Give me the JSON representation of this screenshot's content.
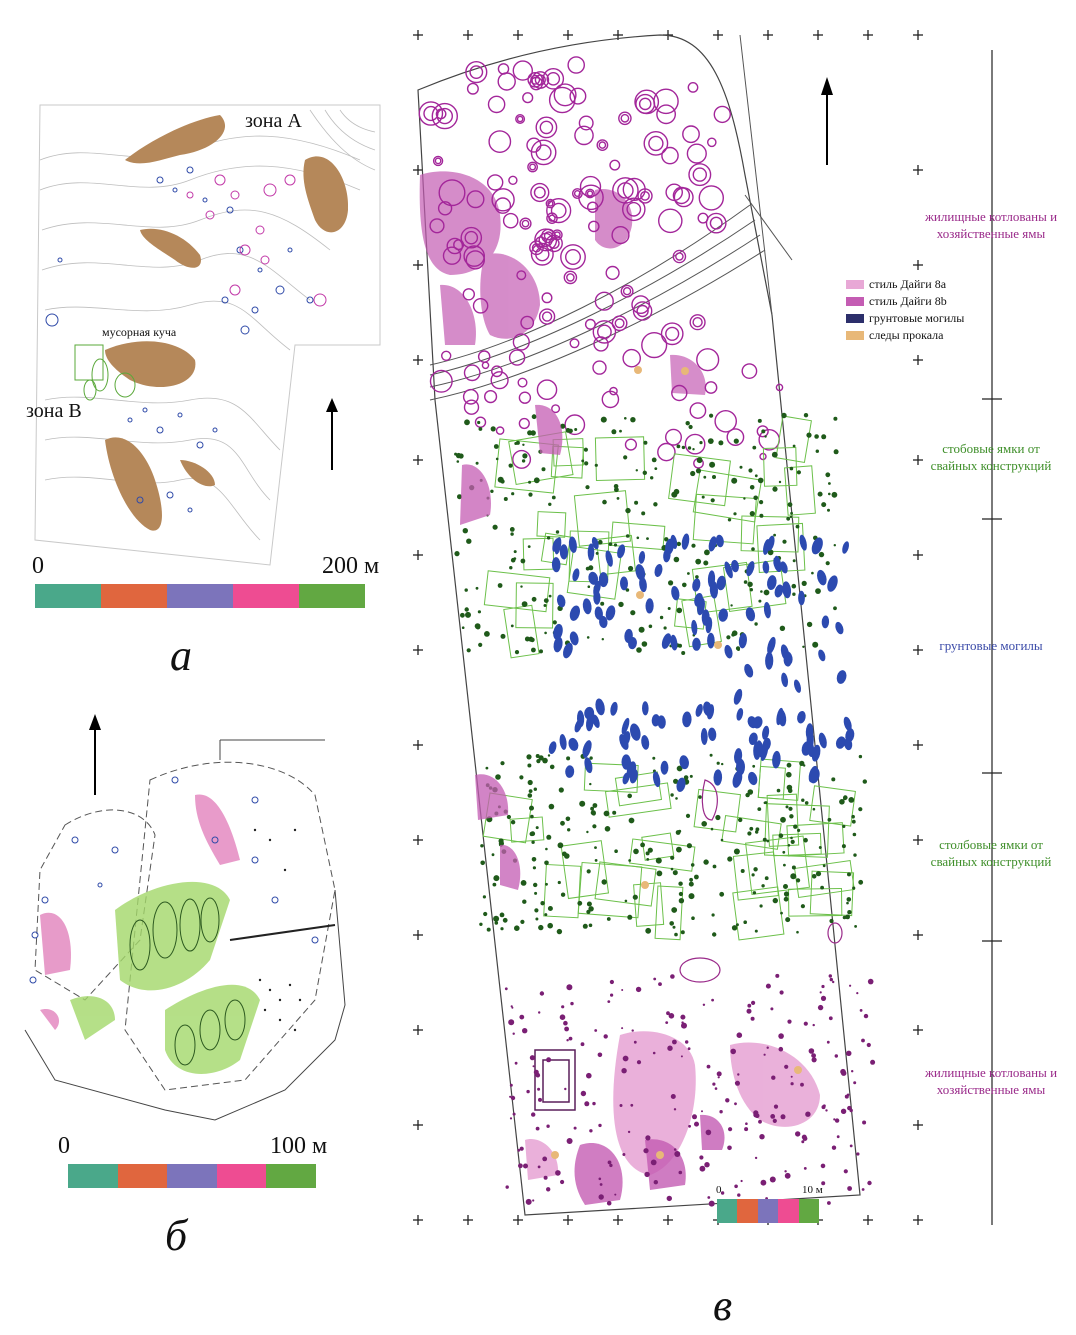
{
  "panels": {
    "a": {
      "label": "а",
      "zone_a": "зона А",
      "zone_v": "зона В",
      "midden": "мусорная куча",
      "scale": {
        "start": "0",
        "end": "200 м"
      }
    },
    "b": {
      "label": "б",
      "scale": {
        "start": "0",
        "end": "100 м"
      }
    },
    "v": {
      "label": "в",
      "scale": {
        "start": "0",
        "end": "10 м"
      },
      "legend": [
        {
          "label": "стиль Дайги 8a",
          "color": "#e8a8d6"
        },
        {
          "label": "стиль Дайги 8b",
          "color": "#c45cb3"
        },
        {
          "label": "грунтовые могилы",
          "color": "#2c2f6b"
        },
        {
          "label": "следы прокала",
          "color": "#e8b878"
        }
      ],
      "bands": [
        {
          "text_1": "жилищные котлованы и",
          "text_2": "хозяйственные ямы",
          "color": "#9a2a8a"
        },
        {
          "text_1": "стобовые ямки от",
          "text_2": "свайных конструкций",
          "color": "#3f8f2a"
        },
        {
          "text_1": "грунтовые могилы",
          "text_2": "",
          "color": "#3a4aa8"
        },
        {
          "text_1": "столбовые ямки от",
          "text_2": "свайных конструкций",
          "color": "#3f8f2a"
        },
        {
          "text_1": "жилищные котлованы и",
          "text_2": "хозяйственные ямы",
          "color": "#9a2a8a"
        }
      ]
    }
  },
  "scale_colors": [
    "#4aa88a",
    "#e0663e",
    "#7c74bb",
    "#ee4c92",
    "#62a842"
  ],
  "icons": [
    "north-arrow-icon"
  ]
}
